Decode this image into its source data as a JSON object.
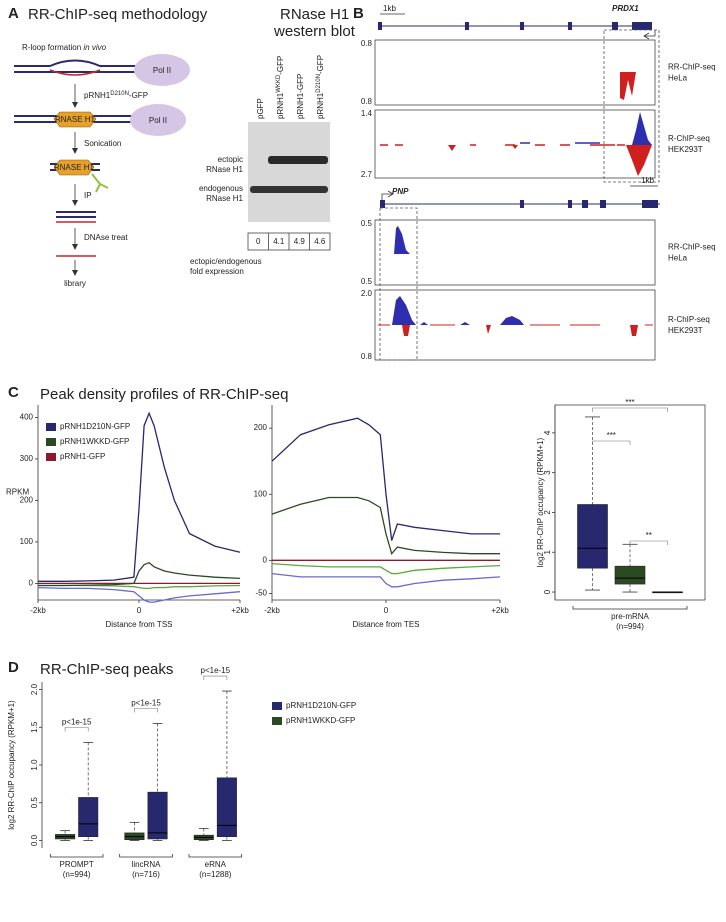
{
  "figure": {
    "panel_a": {
      "letter": "A",
      "title": "RR-ChIP-seq methodology",
      "steps": [
        "R-loop formation",
        "Sonication",
        "IP",
        "DNAse treat",
        "library"
      ],
      "in_vivo": "in vivo",
      "construct": [
        "pRNH1",
        "D210N",
        "-GFP"
      ],
      "pol": "Pol II",
      "enzyme": "RNASE H1",
      "blot_title": [
        "RNase H1",
        "western blot"
      ],
      "lanes": [
        [
          "pGFP"
        ],
        [
          "pRNH1",
          "WKKD",
          "-GFP"
        ],
        [
          "pRNH1-GFP"
        ],
        [
          "pRNH1",
          "D210N",
          "-GFP"
        ]
      ],
      "bands": [
        [
          "ectopic",
          "RNase H1"
        ],
        [
          "endogenous",
          "RNase H1"
        ]
      ],
      "fold": [
        0,
        4.1,
        4.9,
        4.6
      ],
      "fold_caption": [
        "ectopic/endogenous",
        "fold expression"
      ]
    },
    "panel_b": {
      "letter": "B",
      "genes": [
        {
          "name": "PRDX1",
          "scale": "1kb",
          "tracks": [
            {
              "label": [
                "RR-ChIP-seq",
                "HeLa"
              ],
              "top": "0.8",
              "bottom": "0.8"
            },
            {
              "label": [
                "R-ChIP-seq",
                "HEK293T"
              ],
              "top": "1.4",
              "bottom": "2.7"
            }
          ]
        },
        {
          "name": "PNP",
          "scale": "1kb",
          "tracks": [
            {
              "label": [
                "RR-ChIP-seq",
                "HeLa"
              ],
              "top": "0.5",
              "bottom": "0.5"
            },
            {
              "label": [
                "R-ChIP-seq",
                "HEK293T"
              ],
              "top": "2.0",
              "bottom": "0.8"
            }
          ]
        }
      ]
    },
    "panel_c": {
      "letter": "C",
      "title": "Peak density profiles of RR-ChIP-seq"
    },
    "panel_d": {
      "letter": "D",
      "title": "RR-ChIP-seq peaks"
    }
  },
  "chart_data": [
    {
      "type": "line",
      "xlabel": "Distance from TSS",
      "ylabel": "RPKM",
      "xlim": [
        -2,
        2
      ],
      "xticks": [
        {
          "value": -2,
          "label": "-2kb"
        },
        0,
        {
          "value": 2,
          "label": "+2kb"
        }
      ],
      "ylim": [
        -40,
        430
      ],
      "yticks": [
        0,
        100,
        200,
        300,
        400
      ],
      "legend": "upper left",
      "x": [
        -2,
        -1.5,
        -1,
        -0.5,
        -0.1,
        0,
        0.1,
        0.2,
        0.3,
        0.5,
        0.7,
        1,
        1.5,
        2
      ],
      "series": [
        {
          "name": "pRNH1D210N-GFP",
          "color": "#27286e",
          "values": [
            5,
            5,
            6,
            8,
            15,
            180,
            380,
            410,
            380,
            280,
            200,
            120,
            90,
            75
          ]
        },
        {
          "name": "pRNH1WKKD-GFP",
          "color": "#2b4a23",
          "values": [
            -5,
            -5,
            -4,
            -3,
            0,
            30,
            45,
            50,
            40,
            30,
            25,
            20,
            15,
            12
          ]
        },
        {
          "name": "pRNH1-GFP",
          "color": "#8b1a2a",
          "values": [
            0,
            0,
            0,
            0,
            0,
            0,
            0,
            0,
            0,
            0,
            0,
            0,
            0,
            0
          ]
        },
        {
          "color": "#6a6ad0",
          "values": [
            -10,
            -12,
            -12,
            -15,
            -20,
            -30,
            -40,
            -45,
            -45,
            -40,
            -35,
            -30,
            -25,
            -20
          ]
        },
        {
          "color": "#5ca83a",
          "values": [
            -5,
            -5,
            -5,
            -6,
            -8,
            -10,
            -12,
            -12,
            -10,
            -10,
            -8,
            -8,
            -6,
            -5
          ]
        }
      ]
    },
    {
      "type": "line",
      "xlabel": "Distance from TES",
      "xlim": [
        -2,
        2
      ],
      "xticks": [
        {
          "value": -2,
          "label": "-2kb"
        },
        0,
        {
          "value": 2,
          "label": "+2kb"
        }
      ],
      "ylim": [
        -60,
        235
      ],
      "yticks": [
        -50,
        0,
        100,
        200
      ],
      "x": [
        -2,
        -1.5,
        -1,
        -0.5,
        -0.3,
        -0.1,
        0,
        0.1,
        0.2,
        0.5,
        1,
        1.5,
        2
      ],
      "series": [
        {
          "color": "#27286e",
          "values": [
            150,
            190,
            205,
            215,
            205,
            190,
            100,
            30,
            55,
            50,
            45,
            40,
            40
          ]
        },
        {
          "color": "#2b4a23",
          "values": [
            70,
            85,
            95,
            95,
            90,
            80,
            40,
            10,
            20,
            15,
            12,
            10,
            10
          ]
        },
        {
          "color": "#8b1a2a",
          "values": [
            0,
            0,
            0,
            0,
            0,
            0,
            0,
            0,
            0,
            0,
            0,
            0,
            0
          ]
        },
        {
          "color": "#5ca83a",
          "values": [
            -5,
            -8,
            -10,
            -10,
            -10,
            -10,
            -15,
            -20,
            -20,
            -15,
            -12,
            -10,
            -8
          ]
        },
        {
          "color": "#6a6ad0",
          "values": [
            -20,
            -25,
            -25,
            -25,
            -25,
            -25,
            -35,
            -40,
            -40,
            -35,
            -30,
            -28,
            -25
          ]
        }
      ]
    },
    {
      "type": "box",
      "ylabel": "log2 RR-ChIP occupancy (RPKM+1)",
      "categories": [
        "pre-mRNA"
      ],
      "category_notes": [
        "(n=994)"
      ],
      "ylim": [
        -0.2,
        4.7
      ],
      "yticks": [
        0,
        1,
        2,
        3,
        4
      ],
      "annotations": [
        "***",
        "***",
        "**"
      ],
      "series": [
        {
          "color": "#27286e",
          "min": [
            0.05
          ],
          "q1": [
            0.6
          ],
          "median": [
            1.1
          ],
          "q3": [
            2.2
          ],
          "max": [
            4.4
          ]
        },
        {
          "color": "#2b4a23",
          "min": [
            0
          ],
          "q1": [
            0.2
          ],
          "median": [
            0.35
          ],
          "q3": [
            0.65
          ],
          "max": [
            1.2
          ]
        },
        {
          "color": "#8b1a2a",
          "min": [
            0
          ],
          "q1": [
            0
          ],
          "median": [
            0
          ],
          "q3": [
            0
          ],
          "max": [
            0
          ]
        }
      ]
    },
    {
      "type": "box",
      "ylabel": "log2 RR-ChIP occupancy (RPKM+1)",
      "categories": [
        "PROMPT",
        "lincRNA",
        "eRNA"
      ],
      "category_notes": [
        "(n=994)",
        "(n=716)",
        "(n=1288)"
      ],
      "ylim": [
        -0.1,
        2.1
      ],
      "yticks": [
        {
          "value": 0,
          "label": "0.0"
        },
        0.5,
        {
          "value": 1,
          "label": "1.0"
        },
        1.5,
        {
          "value": 2,
          "label": "2.0"
        }
      ],
      "legend": "right",
      "annotations": [
        "p<1e-15",
        "p<1e-15",
        "p<1e-15"
      ],
      "series": [
        {
          "name": "pRNH1D210N-GFP",
          "color": "#27286e",
          "min": [
            0,
            0,
            0
          ],
          "q1": [
            0.05,
            0.02,
            0.05
          ],
          "median": [
            0.22,
            0.1,
            0.2
          ],
          "q3": [
            0.57,
            0.64,
            0.83
          ],
          "max": [
            1.3,
            1.55,
            1.98
          ]
        },
        {
          "name": "pRNH1WKKD-GFP",
          "color": "#2b4a23",
          "min": [
            0,
            0,
            0
          ],
          "q1": [
            0.02,
            0.01,
            0.01
          ],
          "median": [
            0.05,
            0.05,
            0.04
          ],
          "q3": [
            0.08,
            0.1,
            0.07
          ],
          "max": [
            0.13,
            0.24,
            0.16
          ]
        }
      ]
    }
  ]
}
